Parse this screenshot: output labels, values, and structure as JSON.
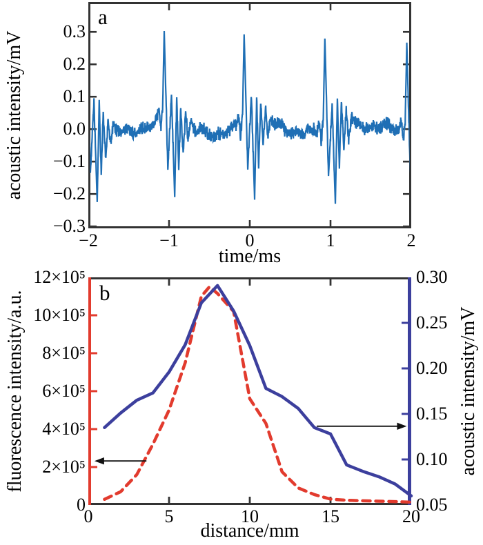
{
  "figure": {
    "background": "#ffffff",
    "text_color": "#000000"
  },
  "chart_data": [
    {
      "panel_label": "a",
      "type": "line",
      "xlabel": "time/ms",
      "ylabel": "acoustic intensity/mV",
      "xlim": [
        -2,
        2
      ],
      "ylim": [
        -0.306,
        0.392
      ],
      "xticks": [
        -2,
        -1,
        0,
        1,
        2
      ],
      "xtick_labels": [
        "−2",
        "−1",
        "0",
        "1",
        "2"
      ],
      "yticks": [
        0.3,
        0.2,
        0.1,
        0.0,
        -0.1,
        -0.2,
        -0.3
      ],
      "ytick_labels": [
        "0.3",
        "0.2",
        "0.1",
        "0.0",
        "−0.1",
        "−0.2",
        "−0.3"
      ],
      "grid": false,
      "axis_color": "#333333",
      "line_color": "#1f6fb5",
      "signal": {
        "description": "periodic acoustic pulse train (period 1 ms) with baseline noise",
        "period_ms": 1.0,
        "peak_mV": 0.29,
        "trough_mV": -0.215,
        "spike_times_ms": [
          -2.02,
          -1.06,
          -0.07,
          0.93,
          1.945
        ],
        "spike_shape": [
          [
            -0.1,
            0.0
          ],
          [
            -0.07,
            0.035
          ],
          [
            -0.045,
            -0.025
          ],
          [
            -0.02,
            0.04
          ],
          [
            0,
            0.29
          ],
          [
            0.045,
            -0.13
          ],
          [
            0.09,
            0.095
          ],
          [
            0.13,
            -0.215
          ],
          [
            0.155,
            0.1
          ],
          [
            0.18,
            -0.12
          ],
          [
            0.205,
            0.075
          ],
          [
            0.235,
            -0.07
          ],
          [
            0.265,
            0.05
          ],
          [
            0.295,
            -0.04
          ],
          [
            0.33,
            0.02
          ],
          [
            0.37,
            0.0
          ]
        ],
        "noise_amp_mV": 0.024,
        "wander_components": [
          [
            0.8,
            0.013,
            0.7
          ],
          [
            2.1,
            0.009,
            3.9
          ],
          [
            5.3,
            0.006,
            1.7
          ]
        ],
        "samples": 1600,
        "seed": 42
      }
    },
    {
      "panel_label": "b",
      "type": "line",
      "xlabel": "distance/mm",
      "xlim": [
        0,
        20
      ],
      "xticks": [
        0,
        5,
        10,
        15,
        20
      ],
      "xtick_labels": [
        "0",
        "5",
        "10",
        "15",
        "20"
      ],
      "grid": false,
      "frame_color": "#333333",
      "left_axis": {
        "label": "fluorescence intensity/a.u.",
        "color": "#e23b2e",
        "lim": [
          0,
          1200000
        ],
        "ticks": [
          0,
          200000,
          400000,
          600000,
          800000,
          1000000,
          1200000
        ],
        "tick_labels": [
          "0",
          "2×10⁵",
          "4×10⁵",
          "6×10⁵",
          "8×10⁵",
          "10×10⁵",
          "12×10⁵"
        ]
      },
      "right_axis": {
        "label": "acoustic intensity/mV",
        "color": "#3c3f9d",
        "lim": [
          0.05,
          0.3
        ],
        "ticks": [
          0.05,
          0.1,
          0.15,
          0.2,
          0.25,
          0.3
        ],
        "tick_labels": [
          "0.05",
          "0.10",
          "0.15",
          "0.20",
          "0.25",
          "0.30"
        ]
      },
      "series": [
        {
          "name": "fluorescence intensity",
          "axis": "left",
          "style": "dashed",
          "color": "#e23b2e",
          "x": [
            1,
            2,
            3,
            4,
            5,
            6,
            7,
            7.5,
            8,
            9,
            10,
            11,
            12,
            13,
            14,
            15,
            16,
            17,
            18,
            19,
            20
          ],
          "y": [
            30000,
            70000,
            160000,
            320000,
            500000,
            750000,
            1100000,
            1150000,
            1115000,
            1020000,
            560000,
            430000,
            175000,
            90000,
            55000,
            31000,
            25000,
            22000,
            20000,
            18000,
            15000
          ]
        },
        {
          "name": "acoustic intensity",
          "axis": "right",
          "style": "solid",
          "color": "#3c3f9d",
          "x": [
            1,
            2,
            3,
            4,
            5,
            6,
            7,
            8,
            9,
            10,
            11,
            12,
            13,
            14,
            15,
            16,
            17,
            18,
            19,
            20
          ],
          "y": [
            0.135,
            0.151,
            0.165,
            0.173,
            0.196,
            0.226,
            0.272,
            0.291,
            0.263,
            0.225,
            0.178,
            0.169,
            0.156,
            0.135,
            0.128,
            0.094,
            0.087,
            0.081,
            0.073,
            0.06
          ]
        }
      ],
      "annotations": [
        {
          "type": "arrow",
          "direction": "left",
          "meaning": "dashed curve reads on left axis",
          "axis": "left",
          "y_value": 232000,
          "x_from_mm": 3.6,
          "x_tip_mm": 0.38
        },
        {
          "type": "arrow",
          "direction": "right",
          "meaning": "solid curve reads on right axis",
          "axis": "right",
          "y_value": 0.1365,
          "x_from_mm": 14.15,
          "x_tip_mm": 19.72
        }
      ],
      "arrow_color": "#111111"
    }
  ]
}
